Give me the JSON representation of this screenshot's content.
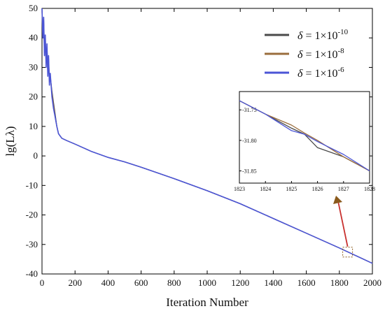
{
  "colors": {
    "series_1": "#4a4a4a",
    "series_2": "#9a6d3d",
    "series_3": "#4b55d6",
    "arrow": "#c8302e",
    "arrow_head": "#8a5a1c",
    "box": "#8a5a1c",
    "axes": "#000000"
  },
  "chart_data": [
    {
      "type": "line",
      "title": "",
      "xlabel": "Iteration Number",
      "ylabel": "lg(Lλ)",
      "xlim": [
        0,
        2000
      ],
      "ylim": [
        -40,
        50
      ],
      "xticks": [
        0,
        200,
        400,
        600,
        800,
        1000,
        1200,
        1400,
        1600,
        1800,
        2000
      ],
      "yticks": [
        -40,
        -30,
        -20,
        -10,
        0,
        10,
        20,
        30,
        40,
        50
      ],
      "grid": false,
      "legend_position": "top-right",
      "series": [
        {
          "name": "δ = 1×10⁻¹⁰",
          "name_parts": {
            "symbol": "δ",
            "mid": " = 1×10",
            "exp": "-10"
          },
          "x": [
            0,
            5,
            10,
            15,
            20,
            25,
            30,
            35,
            40,
            45,
            50,
            60,
            70,
            80,
            90,
            100,
            120,
            150,
            200,
            300,
            400,
            500,
            600,
            800,
            1000,
            1200,
            1400,
            1600,
            1800,
            2000
          ],
          "y": [
            50,
            42,
            46,
            36,
            40,
            31,
            37,
            29,
            33,
            26,
            27,
            22,
            18,
            14,
            10,
            7.5,
            6,
            5.2,
            4,
            1.5,
            -0.5,
            -2,
            -3.8,
            -7.7,
            -11.8,
            -16.2,
            -21.2,
            -26.2,
            -31.2,
            -36.4
          ]
        },
        {
          "name": "δ = 1×10⁻⁸",
          "name_parts": {
            "symbol": "δ",
            "mid": " = 1×10",
            "exp": "-8"
          },
          "x": [
            0,
            5,
            10,
            15,
            20,
            25,
            30,
            35,
            40,
            45,
            50,
            60,
            70,
            80,
            90,
            100,
            120,
            150,
            200,
            300,
            400,
            500,
            600,
            800,
            1000,
            1200,
            1400,
            1600,
            1800,
            2000
          ],
          "y": [
            49,
            41,
            45,
            35,
            39,
            32,
            36,
            28,
            32,
            25,
            27,
            21,
            17,
            13,
            10,
            7.5,
            6,
            5.2,
            4,
            1.5,
            -0.5,
            -2,
            -3.8,
            -7.7,
            -11.8,
            -16.2,
            -21.2,
            -26.2,
            -31.2,
            -36.4
          ]
        },
        {
          "name": "δ = 1×10⁻⁶",
          "name_parts": {
            "symbol": "δ",
            "mid": " = 1×10",
            "exp": "-6"
          },
          "x": [
            0,
            5,
            10,
            15,
            20,
            25,
            30,
            35,
            40,
            45,
            50,
            60,
            70,
            80,
            90,
            100,
            120,
            150,
            200,
            300,
            400,
            500,
            600,
            800,
            1000,
            1200,
            1400,
            1600,
            1800,
            2000
          ],
          "y": [
            50,
            40,
            47,
            34,
            41,
            30,
            38,
            27,
            34,
            24,
            28,
            20,
            16,
            13,
            10,
            7.5,
            6,
            5.2,
            4,
            1.5,
            -0.5,
            -2,
            -3.8,
            -7.7,
            -11.8,
            -16.2,
            -21.2,
            -26.2,
            -31.2,
            -36.4
          ]
        }
      ]
    },
    {
      "type": "line",
      "title": "",
      "xlabel": "",
      "ylabel": "",
      "xlim": [
        1823,
        1828
      ],
      "ylim": [
        -31.87,
        -31.72
      ],
      "xticks": [
        1823,
        1824,
        1825,
        1826,
        1827,
        1828
      ],
      "yticks": [
        -31.75,
        -31.8,
        -31.85
      ],
      "ytick_labels": [
        "-31.75",
        "-31.80",
        "-31.85"
      ],
      "grid": false,
      "series": [
        {
          "name": "",
          "x": [
            1823,
            1824,
            1825,
            1825.5,
            1826,
            1827,
            1828
          ],
          "y": [
            -31.735,
            -31.757,
            -31.78,
            -31.79,
            -31.812,
            -31.827,
            -31.85
          ]
        },
        {
          "name": "",
          "x": [
            1823,
            1824,
            1825,
            1825.5,
            1826,
            1827,
            1828
          ],
          "y": [
            -31.735,
            -31.757,
            -31.775,
            -31.788,
            -31.8,
            -31.827,
            -31.85
          ]
        },
        {
          "name": "",
          "x": [
            1823,
            1824,
            1825,
            1825.5,
            1826,
            1827,
            1828
          ],
          "y": [
            -31.735,
            -31.757,
            -31.784,
            -31.79,
            -31.802,
            -31.823,
            -31.85
          ]
        }
      ]
    }
  ]
}
